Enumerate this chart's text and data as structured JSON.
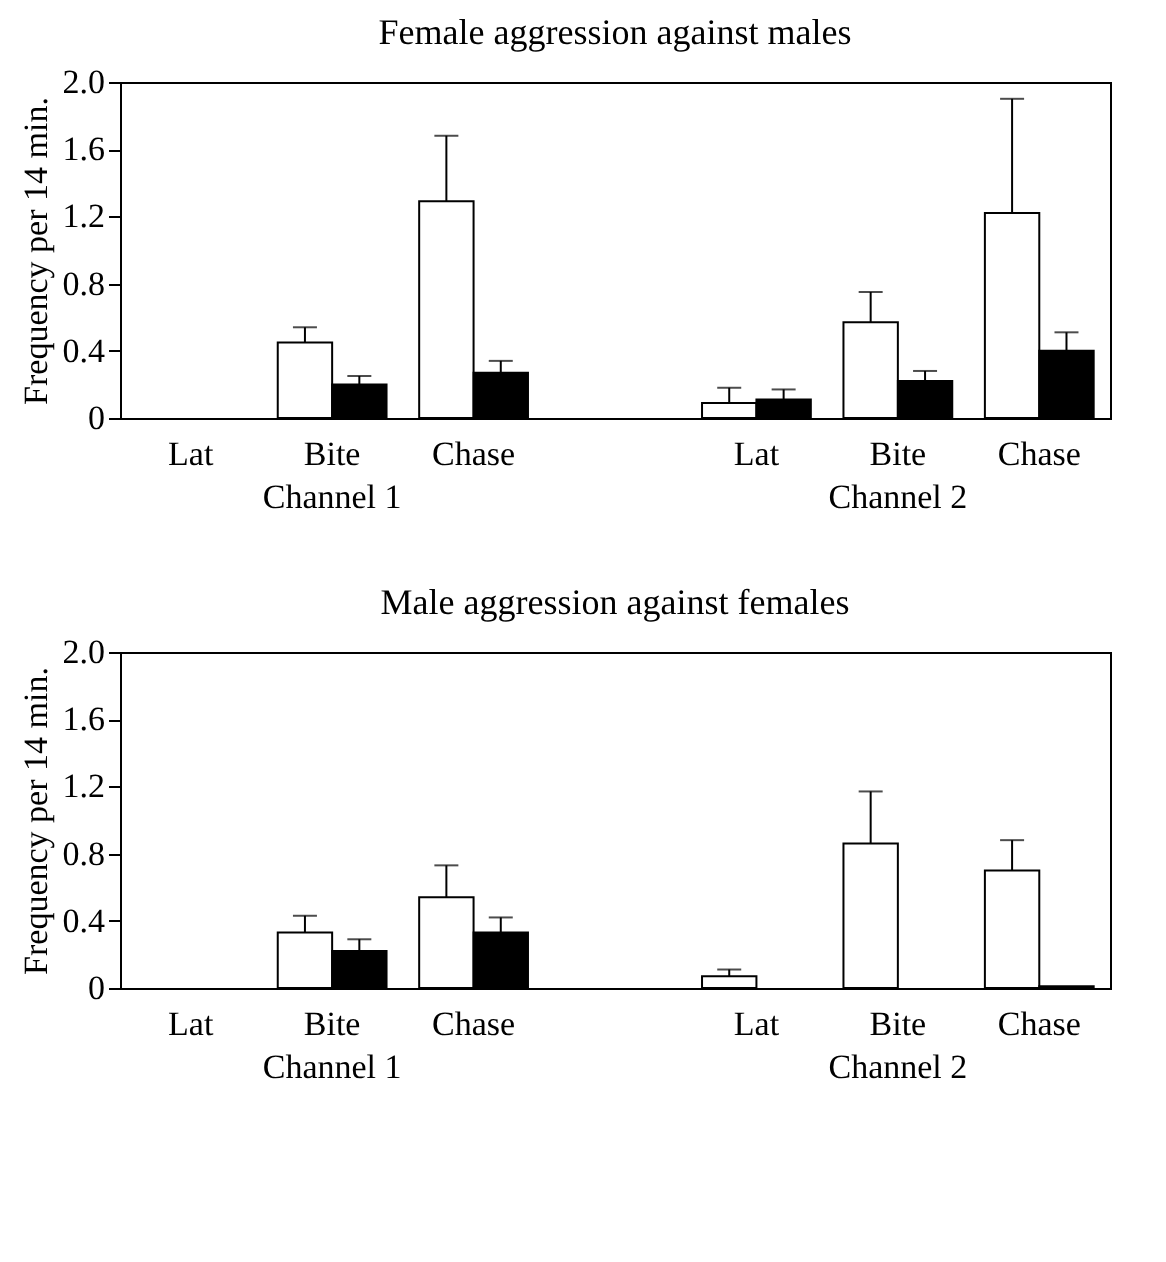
{
  "chart_data": [
    {
      "type": "bar",
      "title": "Female aggression against males",
      "ylabel": "Frequency per 14 min.",
      "categories": [
        "Lat",
        "Bite",
        "Chase",
        null,
        "Lat",
        "Bite",
        "Chase"
      ],
      "series": [
        {
          "color": "#ffffff",
          "values": [
            null,
            0.45,
            1.29,
            null,
            0.09,
            0.57,
            1.22
          ],
          "errors": [
            null,
            [
              0.45,
              0.54
            ],
            [
              1.29,
              1.68
            ],
            null,
            [
              0.09,
              0.18
            ],
            [
              0.57,
              0.75
            ],
            [
              1.22,
              1.9
            ]
          ]
        },
        {
          "color": "#000000",
          "values": [
            null,
            0.2,
            0.27,
            null,
            0.11,
            0.22,
            0.4
          ],
          "errors": [
            null,
            [
              0.2,
              0.25
            ],
            [
              0.27,
              0.34
            ],
            null,
            [
              0.11,
              0.17
            ],
            [
              0.22,
              0.28
            ],
            [
              0.4,
              0.51
            ]
          ]
        }
      ],
      "ylim": [
        0,
        2
      ],
      "yticks": [
        0,
        0.4,
        0.8,
        1.2,
        1.6,
        {
          "value": 2,
          "label": "2.0"
        }
      ],
      "annotations": [
        "Channel 1",
        "Channel 2"
      ],
      "grid": false
    },
    {
      "type": "bar",
      "title": "Male aggression against females",
      "ylabel": "Frequency per 14 min.",
      "categories": [
        "Lat",
        "Bite",
        "Chase",
        null,
        "Lat",
        "Bite",
        "Chase"
      ],
      "series": [
        {
          "color": "#ffffff",
          "values": [
            null,
            0.33,
            0.54,
            null,
            0.07,
            0.86,
            0.7
          ],
          "errors": [
            null,
            [
              0.33,
              0.43
            ],
            [
              0.54,
              0.73
            ],
            null,
            [
              0.07,
              0.11
            ],
            [
              0.86,
              1.17
            ],
            [
              0.7,
              0.88
            ]
          ]
        },
        {
          "color": "#000000",
          "values": [
            null,
            0.22,
            0.33,
            null,
            null,
            null,
            0.01
          ],
          "errors": [
            null,
            [
              0.22,
              0.29
            ],
            [
              0.33,
              0.42
            ],
            null,
            null,
            null,
            null
          ]
        }
      ],
      "ylim": [
        0,
        2
      ],
      "yticks": [
        0,
        0.4,
        0.8,
        1.2,
        1.6,
        {
          "value": 2,
          "label": "2.0"
        }
      ],
      "annotations": [
        "Channel 1",
        "Channel 2"
      ],
      "grid": false
    }
  ]
}
